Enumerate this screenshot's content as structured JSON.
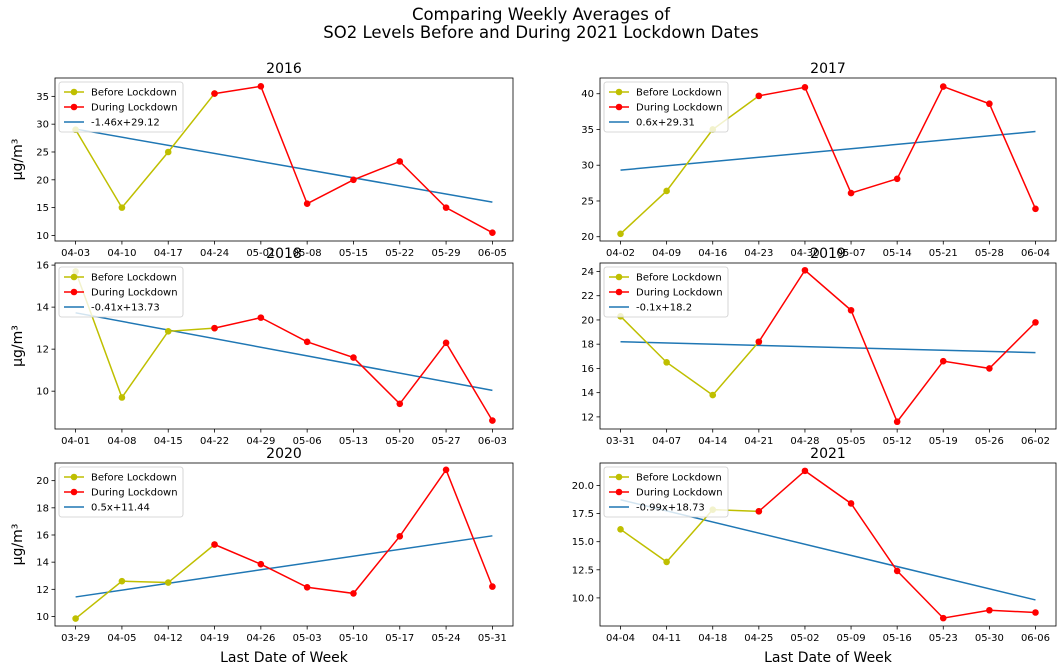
{
  "title_line1": "Comparing Weekly Averages of",
  "title_line2": "SO2 Levels Before and During 2021 Lockdown Dates",
  "colors": {
    "before": "#bfbf00",
    "during": "#ff0000",
    "trend": "#1f77b4"
  },
  "chart_data": [
    {
      "type": "line",
      "title": "2016",
      "ylabel": "μg/m³",
      "xlabel": "",
      "categories": [
        "04-03",
        "04-10",
        "04-17",
        "04-24",
        "05-01",
        "05-08",
        "05-15",
        "05-22",
        "05-29",
        "06-05"
      ],
      "series": [
        {
          "name": "Before Lockdown",
          "values": [
            29.0,
            15.0,
            25.0,
            35.5,
            null,
            null,
            null,
            null,
            null,
            null
          ]
        },
        {
          "name": "During Lockdown",
          "values": [
            null,
            null,
            null,
            35.5,
            36.8,
            15.7,
            20.0,
            23.3,
            15.0,
            10.5
          ]
        }
      ],
      "trend": {
        "name": "-1.46x+29.12",
        "slope": -1.46,
        "intercept": 29.12
      },
      "ylim": [
        9.0,
        38.3
      ],
      "yticks": [
        10,
        15,
        20,
        25,
        30,
        35
      ],
      "ytick_labels": [
        "10",
        "15",
        "20",
        "25",
        "30",
        "35"
      ]
    },
    {
      "type": "line",
      "title": "2017",
      "ylabel": "",
      "xlabel": "",
      "categories": [
        "04-02",
        "04-09",
        "04-16",
        "04-23",
        "04-30",
        "05-07",
        "05-14",
        "05-21",
        "05-28",
        "06-04"
      ],
      "series": [
        {
          "name": "Before Lockdown",
          "values": [
            20.4,
            26.4,
            35.0,
            39.7,
            null,
            null,
            null,
            null,
            null,
            null
          ]
        },
        {
          "name": "During Lockdown",
          "values": [
            null,
            null,
            null,
            39.7,
            40.9,
            26.1,
            28.1,
            41.0,
            38.6,
            23.9
          ]
        }
      ],
      "trend": {
        "name": "0.6x+29.31",
        "slope": 0.6,
        "intercept": 29.31
      },
      "ylim": [
        19.4,
        42.2
      ],
      "yticks": [
        20,
        25,
        30,
        35,
        40
      ],
      "ytick_labels": [
        "20",
        "25",
        "30",
        "35",
        "40"
      ]
    },
    {
      "type": "line",
      "title": "2018",
      "ylabel": "μg/m³",
      "xlabel": "",
      "categories": [
        "04-01",
        "04-08",
        "04-15",
        "04-22",
        "04-29",
        "05-06",
        "05-13",
        "05-20",
        "05-27",
        "06-03"
      ],
      "series": [
        {
          "name": "Before Lockdown",
          "values": [
            15.7,
            9.7,
            12.85,
            13.0,
            null,
            null,
            null,
            null,
            null,
            null
          ]
        },
        {
          "name": "During Lockdown",
          "values": [
            null,
            null,
            null,
            13.0,
            13.5,
            12.35,
            11.6,
            9.4,
            12.3,
            8.6
          ]
        }
      ],
      "trend": {
        "name": "-0.41x+13.73",
        "slope": -0.41,
        "intercept": 13.73
      },
      "ylim": [
        8.2,
        16.1
      ],
      "yticks": [
        10,
        12,
        14,
        16
      ],
      "ytick_labels": [
        "10",
        "12",
        "14",
        "16"
      ]
    },
    {
      "type": "line",
      "title": "2019",
      "ylabel": "",
      "xlabel": "",
      "categories": [
        "03-31",
        "04-07",
        "04-14",
        "04-21",
        "04-28",
        "05-05",
        "05-12",
        "05-19",
        "05-26",
        "06-02"
      ],
      "series": [
        {
          "name": "Before Lockdown",
          "values": [
            20.3,
            16.5,
            13.8,
            18.2,
            null,
            null,
            null,
            null,
            null,
            null
          ]
        },
        {
          "name": "During Lockdown",
          "values": [
            null,
            null,
            null,
            18.2,
            24.1,
            20.8,
            11.6,
            16.6,
            16.0,
            19.8
          ]
        }
      ],
      "trend": {
        "name": "-0.1x+18.2",
        "slope": -0.1,
        "intercept": 18.2
      },
      "ylim": [
        11.0,
        24.7
      ],
      "yticks": [
        12,
        14,
        16,
        18,
        20,
        22,
        24
      ],
      "ytick_labels": [
        "12",
        "14",
        "16",
        "18",
        "20",
        "22",
        "24"
      ]
    },
    {
      "type": "line",
      "title": "2020",
      "ylabel": "μg/m³",
      "xlabel": "Last Date of Week",
      "categories": [
        "03-29",
        "04-05",
        "04-12",
        "04-19",
        "04-26",
        "05-03",
        "05-10",
        "05-17",
        "05-24",
        "05-31"
      ],
      "series": [
        {
          "name": "Before Lockdown",
          "values": [
            9.85,
            12.6,
            12.5,
            15.3,
            null,
            null,
            null,
            null,
            null,
            null
          ]
        },
        {
          "name": "During Lockdown",
          "values": [
            null,
            null,
            null,
            15.3,
            13.85,
            12.15,
            11.7,
            15.9,
            20.8,
            12.2
          ]
        }
      ],
      "trend": {
        "name": "0.5x+11.44",
        "slope": 0.5,
        "intercept": 11.44
      },
      "ylim": [
        9.3,
        21.3
      ],
      "yticks": [
        10,
        12,
        14,
        16,
        18,
        20
      ],
      "ytick_labels": [
        "10",
        "12",
        "14",
        "16",
        "18",
        "20"
      ]
    },
    {
      "type": "line",
      "title": "2021",
      "ylabel": "",
      "xlabel": "Last Date of Week",
      "categories": [
        "04-04",
        "04-11",
        "04-18",
        "04-25",
        "05-02",
        "05-09",
        "05-16",
        "05-23",
        "05-30",
        "06-06"
      ],
      "series": [
        {
          "name": "Before Lockdown",
          "values": [
            16.1,
            13.2,
            17.85,
            17.7,
            null,
            null,
            null,
            null,
            null,
            null
          ]
        },
        {
          "name": "During Lockdown",
          "values": [
            null,
            null,
            null,
            17.7,
            21.3,
            18.4,
            12.4,
            8.2,
            8.9,
            8.7
          ]
        }
      ],
      "trend": {
        "name": "-0.99x+18.73",
        "slope": -0.99,
        "intercept": 18.73
      },
      "ylim": [
        7.5,
        22.0
      ],
      "yticks": [
        10.0,
        12.5,
        15.0,
        17.5,
        20.0
      ],
      "ytick_labels": [
        "10.0",
        "12.5",
        "15.0",
        "17.5",
        "20.0"
      ]
    }
  ]
}
